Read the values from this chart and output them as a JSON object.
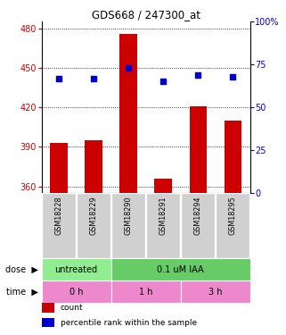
{
  "title": "GDS668 / 247300_at",
  "samples": [
    "GSM18228",
    "GSM18229",
    "GSM18290",
    "GSM18291",
    "GSM18294",
    "GSM18295"
  ],
  "counts": [
    393,
    395,
    476,
    366,
    421,
    410
  ],
  "percentile_ranks": [
    67,
    67,
    73,
    65,
    69,
    68
  ],
  "ylim_left": [
    355,
    485
  ],
  "ylim_right": [
    0,
    100
  ],
  "yticks_left": [
    360,
    390,
    420,
    450,
    480
  ],
  "yticks_right": [
    0,
    25,
    50,
    75,
    100
  ],
  "bar_color": "#cc0000",
  "dot_color": "#0000cc",
  "bar_baseline": 355,
  "dose_labels": [
    {
      "label": "untreated",
      "span": [
        0,
        2
      ],
      "color": "#90ee90"
    },
    {
      "label": "0.1 uM IAA",
      "span": [
        2,
        6
      ],
      "color": "#66cc66"
    }
  ],
  "time_labels": [
    {
      "label": "0 h",
      "span": [
        0,
        2
      ],
      "color": "#ee88cc"
    },
    {
      "label": "1 h",
      "span": [
        2,
        4
      ],
      "color": "#ee88cc"
    },
    {
      "label": "3 h",
      "span": [
        4,
        6
      ],
      "color": "#ee88cc"
    }
  ],
  "legend_items": [
    {
      "color": "#cc0000",
      "label": "count"
    },
    {
      "color": "#0000cc",
      "label": "percentile rank within the sample"
    }
  ],
  "left_tick_color": "#cc0000",
  "right_tick_color": "#0000cc",
  "sample_bg_color": "#d0d0d0",
  "sample_border_color": "#ffffff"
}
